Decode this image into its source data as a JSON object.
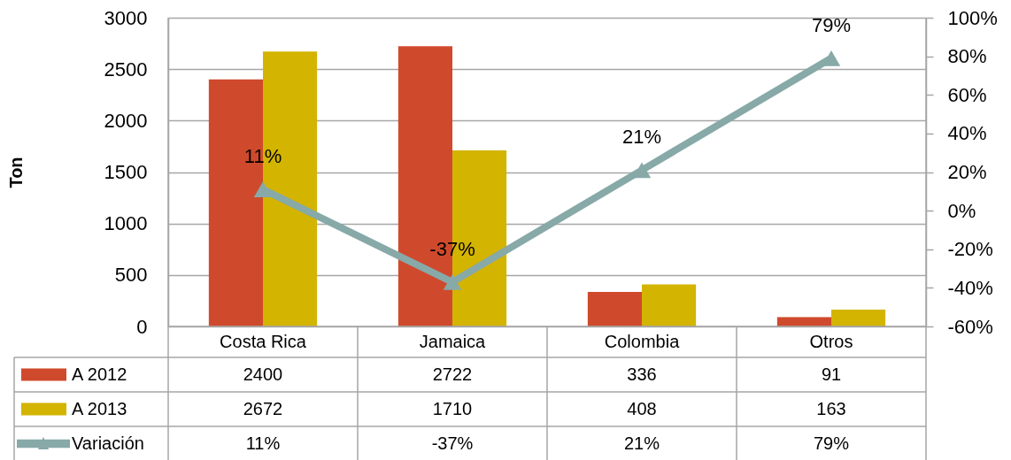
{
  "chart_data": {
    "type": "bar",
    "categories": [
      "Costa Rica",
      "Jamaica",
      "Colombia",
      "Otros"
    ],
    "ylabel": "Ton",
    "series": [
      {
        "name": "A 2012",
        "color": "#cf4a2c",
        "values": [
          2400,
          2722,
          336,
          91
        ],
        "value_labels": [
          "2400",
          "2722",
          "336",
          "91"
        ]
      },
      {
        "name": "A 2013",
        "color": "#d3b400",
        "values": [
          2672,
          1710,
          408,
          163
        ],
        "value_labels": [
          "2672",
          "1710",
          "408",
          "163"
        ]
      },
      {
        "name": "Variación",
        "type": "line",
        "axis": "y2",
        "color": "#87a9a8",
        "values": [
          11,
          -37,
          21,
          79
        ],
        "value_labels": [
          "11%",
          "-37%",
          "21%",
          "79%"
        ]
      }
    ],
    "ylim": [
      0,
      3000
    ],
    "yticks": [
      0,
      500,
      1000,
      1500,
      2000,
      2500,
      3000
    ],
    "y2lim": [
      -60,
      100
    ],
    "y2ticks": [
      {
        "value": -60,
        "label": "-60%"
      },
      {
        "value": -40,
        "label": "-40%"
      },
      {
        "value": -20,
        "label": "-20%"
      },
      {
        "value": 0,
        "label": "0%"
      },
      {
        "value": 20,
        "label": "20%"
      },
      {
        "value": 40,
        "label": "40%"
      },
      {
        "value": 60,
        "label": "60%"
      },
      {
        "value": 80,
        "label": "80%"
      },
      {
        "value": 100,
        "label": "100%"
      }
    ],
    "grid": "y",
    "legend": "bottom",
    "marker": "triangle"
  }
}
